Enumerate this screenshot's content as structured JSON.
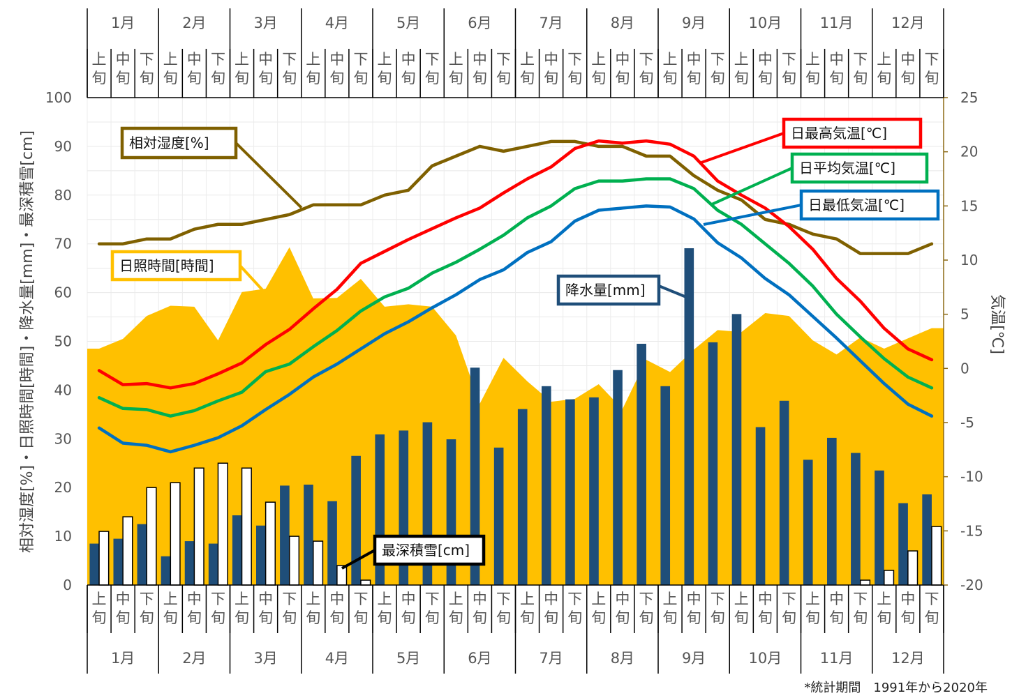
{
  "chart_data": {
    "type": "bar",
    "title": "",
    "x": [
      "1月上旬",
      "1月中旬",
      "1月下旬",
      "2月上旬",
      "2月中旬",
      "2月下旬",
      "3月上旬",
      "3月中旬",
      "3月下旬",
      "4月上旬",
      "4月中旬",
      "4月下旬",
      "5月上旬",
      "5月中旬",
      "5月下旬",
      "6月上旬",
      "6月中旬",
      "6月下旬",
      "7月上旬",
      "7月中旬",
      "7月下旬",
      "8月上旬",
      "8月中旬",
      "8月下旬",
      "9月上旬",
      "9月中旬",
      "9月下旬",
      "10月上旬",
      "10月中旬",
      "10月下旬",
      "11月上旬",
      "11月中旬",
      "11月下旬",
      "12月上旬",
      "12月中旬",
      "12月下旬"
    ],
    "months": [
      "1月",
      "2月",
      "3月",
      "4月",
      "5月",
      "6月",
      "7月",
      "8月",
      "9月",
      "10月",
      "11月",
      "12月"
    ],
    "periods": [
      "上旬",
      "中旬",
      "下旬"
    ],
    "y_left": {
      "label": "相対湿度[%]・日照時間[時間]・降水量[mm]・最深積雪[cm]",
      "range": [
        0,
        100
      ],
      "ticks": [
        0,
        10,
        20,
        30,
        40,
        50,
        60,
        70,
        80,
        90,
        100
      ]
    },
    "y_right": {
      "label": "気温[℃]",
      "range": [
        -20,
        25
      ],
      "ticks": [
        -20,
        -15,
        -10,
        -5,
        0,
        5,
        10,
        15,
        20,
        25
      ]
    },
    "grid": true,
    "series": [
      {
        "name": "日照時間[時間]",
        "type": "area",
        "axis": "left",
        "color": "#FFC000",
        "values": [
          48.5,
          50.5,
          55.2,
          57.3,
          57.1,
          50.2,
          60.1,
          60.8,
          69.3,
          58.8,
          58.9,
          62.8,
          57.1,
          57.6,
          57.1,
          51.2,
          37.2,
          46.6,
          41.8,
          37.6,
          38.2,
          41.2,
          36.1,
          46.2,
          43.7,
          48.3,
          52.3,
          51.9,
          55.8,
          55.2,
          50.2,
          47.3,
          50.8,
          48.5,
          50.6,
          52.7
        ]
      },
      {
        "name": "降水量[mm]",
        "type": "bar",
        "axis": "left",
        "color": "#1F4E79",
        "values": [
          8.5,
          9.5,
          12.5,
          5.9,
          9.0,
          8.5,
          14.3,
          12.2,
          20.4,
          20.6,
          17.2,
          26.5,
          30.9,
          31.7,
          33.4,
          29.9,
          44.6,
          28.2,
          36.1,
          40.8,
          38.1,
          38.5,
          44.1,
          49.5,
          40.8,
          69.1,
          49.8,
          55.6,
          32.4,
          37.8,
          25.7,
          30.2,
          27.1,
          23.5,
          16.8,
          18.6
        ]
      },
      {
        "name": "最深積雪[cm]",
        "type": "bar",
        "axis": "left",
        "color": "#FFFFFF",
        "values": [
          11.0,
          14.0,
          20.0,
          21.0,
          24.0,
          25.0,
          24.0,
          17.0,
          10.0,
          9.0,
          4.0,
          1.0,
          0,
          0,
          0,
          0,
          0,
          0,
          0,
          0,
          0,
          0,
          0,
          0,
          0,
          0,
          0,
          0,
          0,
          0,
          0,
          0,
          1.0,
          3.0,
          7.0,
          12.0
        ]
      },
      {
        "name": "相対湿度[%]",
        "type": "line",
        "axis": "left",
        "color": "#7F6000",
        "values": [
          70,
          70,
          71,
          71,
          73,
          74,
          74,
          75,
          76,
          78,
          78,
          78,
          80,
          81,
          86,
          88,
          90,
          89,
          90,
          91,
          91,
          90,
          90,
          88,
          88,
          84,
          81,
          79,
          75,
          74,
          72,
          71,
          68,
          68,
          68,
          70
        ]
      },
      {
        "name": "日最高気温[℃]",
        "type": "line",
        "axis": "right",
        "color": "#FF0000",
        "values": [
          -0.2,
          -1.5,
          -1.4,
          -1.8,
          -1.4,
          -0.5,
          0.5,
          2.2,
          3.6,
          5.5,
          7.3,
          9.7,
          10.8,
          11.9,
          12.9,
          13.9,
          14.8,
          16.2,
          17.5,
          18.6,
          20.3,
          21.0,
          20.8,
          21.0,
          20.7,
          19.6,
          17.3,
          16.0,
          14.8,
          13.1,
          11.0,
          8.3,
          6.2,
          3.7,
          1.8,
          0.8
        ]
      },
      {
        "name": "日平均気温[℃]",
        "type": "line",
        "axis": "right",
        "color": "#00B050",
        "values": [
          -2.7,
          -3.7,
          -3.8,
          -4.4,
          -3.9,
          -3.0,
          -2.2,
          -0.3,
          0.4,
          2.0,
          3.5,
          5.3,
          6.6,
          7.4,
          8.8,
          9.8,
          11.0,
          12.3,
          13.9,
          15.0,
          16.6,
          17.3,
          17.3,
          17.5,
          17.5,
          16.6,
          14.6,
          13.3,
          11.5,
          9.7,
          7.6,
          5.0,
          2.9,
          0.9,
          -0.8,
          -1.8
        ]
      },
      {
        "name": "日最低気温[℃]",
        "type": "line",
        "axis": "right",
        "color": "#0070C0",
        "values": [
          -5.5,
          -6.9,
          -7.1,
          -7.7,
          -7.1,
          -6.4,
          -5.3,
          -3.8,
          -2.4,
          -0.8,
          0.4,
          1.8,
          3.2,
          4.3,
          5.6,
          6.8,
          8.2,
          9.1,
          10.7,
          11.7,
          13.6,
          14.6,
          14.8,
          15.0,
          14.9,
          13.8,
          11.6,
          10.2,
          8.3,
          6.8,
          4.8,
          2.8,
          0.7,
          -1.4,
          -3.3,
          -4.4
        ]
      }
    ],
    "callouts": {
      "humidity": "相対湿度[%]",
      "sunshine": "日照時間[時間]",
      "tmax": "日最高気温[℃]",
      "tavg": "日平均気温[℃]",
      "tmin": "日最低気温[℃]",
      "precip": "降水量[mm]",
      "snow": "最深積雪[cm]"
    },
    "footnote": "*統計期間　1991年から2020年",
    "colors": {
      "sunshine": "#FFC000",
      "precip": "#1F4E79",
      "snow_fill": "#FFFFFF",
      "humidity": "#7F6000",
      "tmax": "#FF0000",
      "tavg": "#00B050",
      "tmin": "#0070C0",
      "temp_axis": "#8B6914"
    }
  }
}
